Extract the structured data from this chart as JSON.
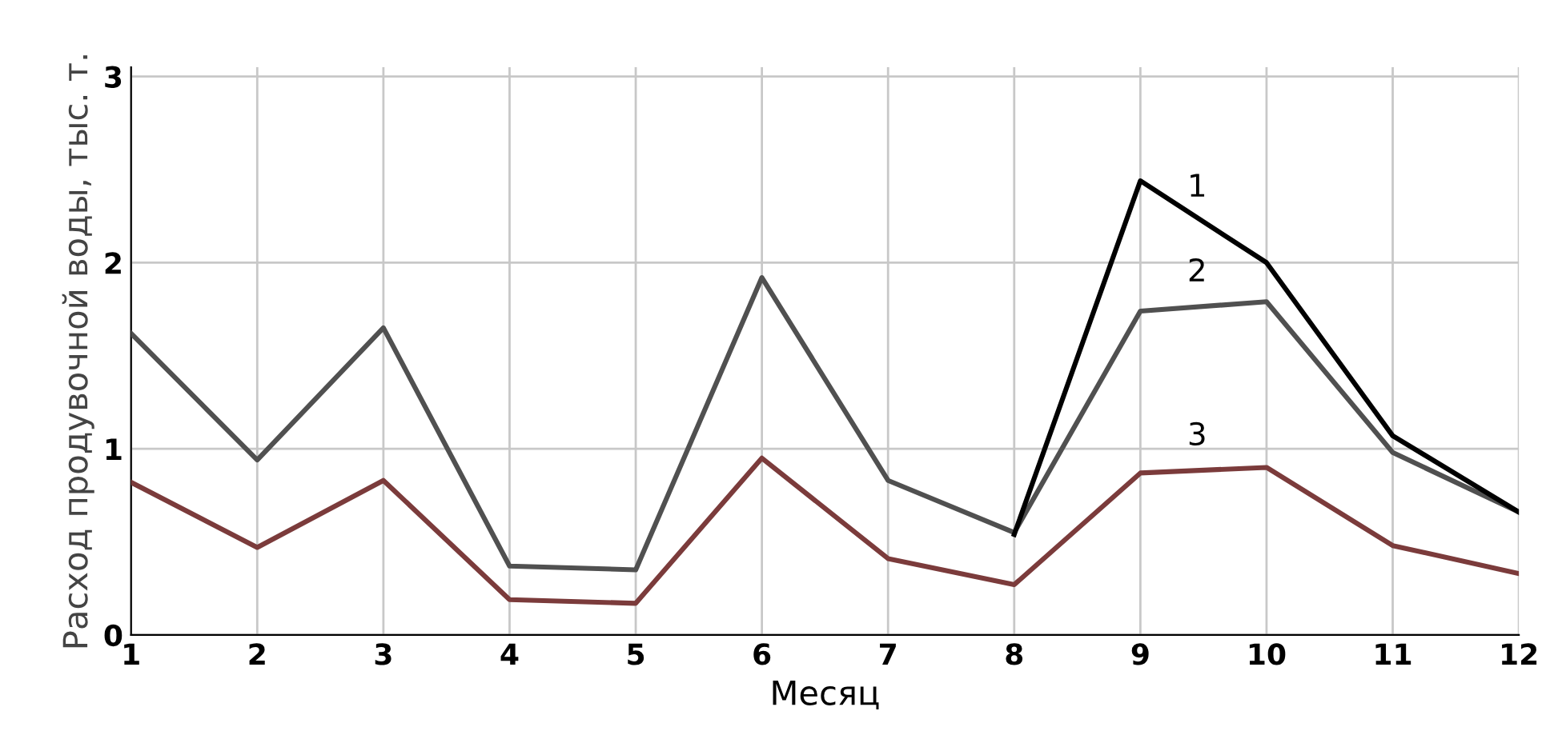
{
  "chart_data": {
    "type": "line",
    "xlabel": "Месяц",
    "ylabel": "Расход продувочной воды, тыс. т.",
    "x": [
      1,
      2,
      3,
      4,
      5,
      6,
      7,
      8,
      9,
      10,
      11,
      12
    ],
    "series": [
      {
        "name": "1",
        "color": "#000000",
        "values": [
          null,
          null,
          null,
          null,
          null,
          null,
          null,
          0.54,
          2.44,
          2.0,
          1.07,
          0.66
        ]
      },
      {
        "name": "2",
        "color": "#505050",
        "values": [
          1.62,
          0.94,
          1.65,
          0.37,
          0.35,
          1.92,
          0.83,
          0.55,
          1.74,
          1.79,
          0.98,
          0.66
        ]
      },
      {
        "name": "3",
        "color": "#7b3b3b",
        "values": [
          0.82,
          0.47,
          0.83,
          0.19,
          0.17,
          0.95,
          0.41,
          0.27,
          0.87,
          0.9,
          0.48,
          0.33
        ]
      }
    ],
    "xlim": [
      1,
      12
    ],
    "xticks": [
      1,
      2,
      3,
      4,
      5,
      6,
      7,
      8,
      9,
      10,
      11,
      12
    ],
    "ylim": [
      0,
      3.05
    ],
    "yticks": [
      0,
      1,
      2,
      3
    ],
    "grid": true,
    "marker": "none",
    "line_style": "solid",
    "legend": false
  }
}
